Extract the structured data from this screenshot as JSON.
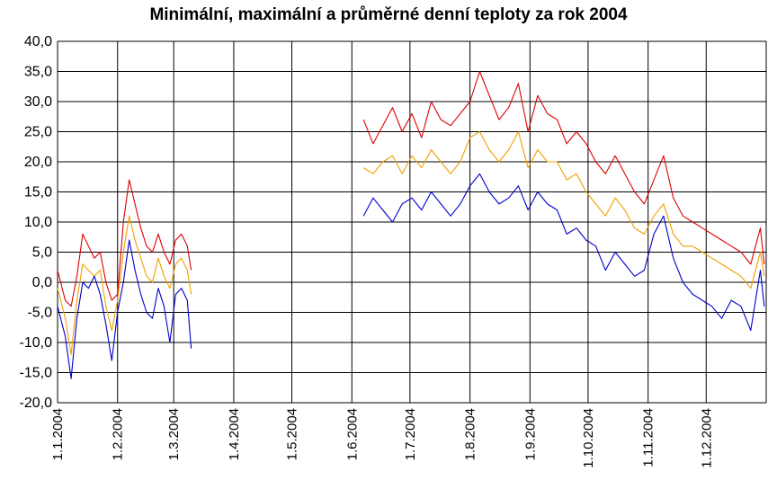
{
  "chart_data": {
    "type": "line",
    "title": "Minimální, maximální a průměrné denní teploty za rok 2004",
    "xlabel": "",
    "ylabel": "",
    "ylim": [
      -20,
      40
    ],
    "y_ticks": [
      "-20,0",
      "-15,0",
      "-10,0",
      "-5,0",
      "0,0",
      "5,0",
      "10,0",
      "15,0",
      "20,0",
      "25,0",
      "30,0",
      "35,0",
      "40,0"
    ],
    "x_ticks": [
      "1.1.2004",
      "1.2.2004",
      "1.3.2004",
      "1.4.2004",
      "1.5.2004",
      "1.6.2004",
      "1.7.2004",
      "1.8.2004",
      "1.9.2004",
      "1.10.2004",
      "1.11.2004",
      "1.12.2004"
    ],
    "grid": true,
    "legend": "none",
    "series_colors": [
      "#dd0000",
      "#f0a000",
      "#0000cc"
    ],
    "segments": [
      {
        "x": [
          "1.1.2004",
          "5.1.2004",
          "8.1.2004",
          "11.1.2004",
          "14.1.2004",
          "17.1.2004",
          "20.1.2004",
          "23.1.2004",
          "26.1.2004",
          "29.1.2004",
          "1.2.2004",
          "4.2.2004",
          "7.2.2004",
          "10.2.2004",
          "13.2.2004",
          "16.2.2004",
          "19.2.2004",
          "22.2.2004",
          "25.2.2004",
          "28.2.2004",
          "2.3.2004",
          "5.3.2004",
          "8.3.2004",
          "10.3.2004"
        ],
        "series": [
          {
            "values": [
              2,
              -3,
              -4,
              1,
              8,
              6,
              4,
              5,
              0,
              -3,
              -2,
              10,
              17,
              13,
              9,
              6,
              5,
              8,
              5,
              3,
              7,
              8,
              6,
              2
            ]
          },
          {
            "values": [
              -1,
              -6,
              -12,
              -3,
              3,
              2,
              1,
              2,
              -4,
              -8,
              -3,
              5,
              11,
              7,
              4,
              1,
              0,
              4,
              1,
              -1,
              3,
              4,
              2,
              -2
            ]
          },
          {
            "values": [
              -4,
              -9,
              -16,
              -6,
              0,
              -1,
              1,
              -2,
              -7,
              -13,
              -5,
              0,
              7,
              2,
              -2,
              -5,
              -6,
              -1,
              -4,
              -10,
              -2,
              -1,
              -3,
              -11
            ]
          }
        ]
      },
      {
        "x": [
          "7.6.2004",
          "12.6.2004",
          "17.6.2004",
          "22.6.2004",
          "27.6.2004",
          "2.7.2004",
          "7.7.2004",
          "12.7.2004",
          "17.7.2004",
          "22.7.2004",
          "27.7.2004",
          "1.8.2004",
          "6.8.2004",
          "11.8.2004",
          "16.8.2004",
          "21.8.2004",
          "26.8.2004",
          "31.8.2004",
          "5.9.2004",
          "10.9.2004",
          "15.9.2004",
          "20.9.2004",
          "25.9.2004",
          "30.9.2004",
          "5.10.2004",
          "10.10.2004",
          "15.10.2004",
          "20.10.2004",
          "25.10.2004",
          "30.10.2004",
          "4.11.2004",
          "9.11.2004",
          "14.11.2004",
          "19.11.2004",
          "24.11.2004",
          "29.11.2004",
          "4.12.2004",
          "9.12.2004",
          "14.12.2004",
          "19.12.2004",
          "24.12.2004",
          "29.12.2004",
          "31.12.2004"
        ],
        "series": [
          {
            "values": [
              27,
              23,
              26,
              29,
              25,
              28,
              24,
              30,
              27,
              26,
              28,
              30,
              35,
              31,
              27,
              29,
              33,
              25,
              31,
              28,
              27,
              23,
              25,
              23,
              20,
              18,
              21,
              18,
              15,
              13,
              17,
              21,
              14,
              11,
              10,
              9,
              8,
              7,
              6,
              5,
              3,
              9,
              3
            ]
          },
          {
            "values": [
              19,
              18,
              20,
              21,
              18,
              21,
              19,
              22,
              20,
              18,
              20,
              24,
              25,
              22,
              20,
              22,
              25,
              19,
              22,
              20,
              20,
              17,
              18,
              15,
              13,
              11,
              14,
              12,
              9,
              8,
              11,
              13,
              8,
              6,
              6,
              5,
              4,
              3,
              2,
              1,
              -1,
              5,
              1
            ]
          },
          {
            "values": [
              11,
              14,
              12,
              10,
              13,
              14,
              12,
              15,
              13,
              11,
              13,
              16,
              18,
              15,
              13,
              14,
              16,
              12,
              15,
              13,
              12,
              8,
              9,
              7,
              6,
              2,
              5,
              3,
              1,
              2,
              8,
              11,
              4,
              0,
              -2,
              -3,
              -4,
              -6,
              -3,
              -4,
              -8,
              2,
              -4
            ]
          }
        ]
      }
    ]
  }
}
